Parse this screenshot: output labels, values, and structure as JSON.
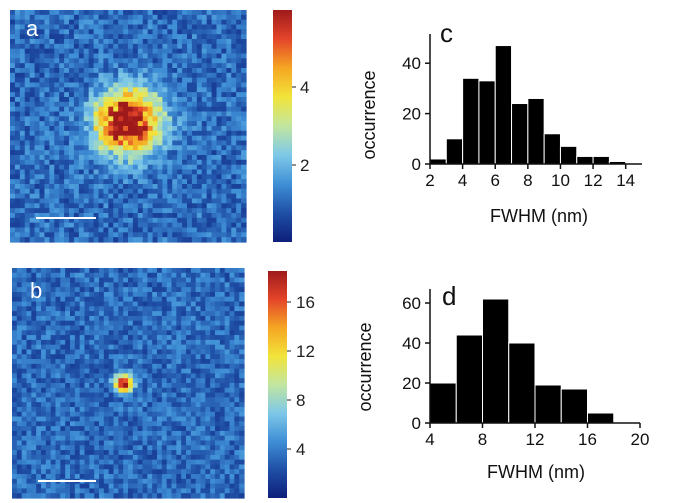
{
  "panels": {
    "a": {
      "label": "a",
      "colorbar": {
        "ticks": [
          "2",
          "4"
        ],
        "tick_values": [
          2,
          4
        ],
        "range": [
          0,
          6
        ]
      },
      "spot": {
        "peak": 6,
        "spread": "broad"
      }
    },
    "b": {
      "label": "b",
      "colorbar": {
        "ticks": [
          "4",
          "8",
          "12",
          "16"
        ],
        "tick_values": [
          4,
          8,
          12,
          16
        ],
        "range": [
          0,
          18
        ]
      },
      "spot": {
        "peak": 18,
        "spread": "narrow"
      }
    }
  },
  "colormap": [
    "#0d1f7a",
    "#1f4fa6",
    "#3f8fd6",
    "#7ec8e8",
    "#c2e6a0",
    "#f2e43a",
    "#f5a623",
    "#e4452a",
    "#9e1a1a"
  ],
  "chart_data": [
    {
      "panel": "c",
      "label": "c",
      "type": "bar",
      "xlabel": "FWHM (nm)",
      "ylabel": "occurrence",
      "xlim": [
        2,
        15
      ],
      "ylim": [
        0,
        50
      ],
      "xticks": [
        2,
        4,
        6,
        8,
        10,
        12,
        14
      ],
      "yticks": [
        0,
        20,
        40
      ],
      "bin_edges": [
        2,
        3,
        4,
        5,
        6,
        7,
        8,
        9,
        10,
        11,
        12,
        13,
        14
      ],
      "values": [
        2,
        10,
        34,
        33,
        47,
        24,
        26,
        12,
        7,
        3,
        3,
        1
      ],
      "bar_color": "#000000"
    },
    {
      "panel": "d",
      "label": "d",
      "type": "bar",
      "xlabel": "FWHM (nm)",
      "ylabel": "occurrence",
      "xlim": [
        4,
        20
      ],
      "ylim": [
        0,
        65
      ],
      "xticks": [
        4,
        8,
        12,
        16,
        20
      ],
      "yticks": [
        0,
        20,
        40,
        60
      ],
      "bin_edges": [
        4,
        6,
        8,
        10,
        12,
        14,
        16,
        18
      ],
      "values": [
        20,
        44,
        62,
        40,
        19,
        17,
        5
      ],
      "bar_color": "#000000"
    }
  ]
}
